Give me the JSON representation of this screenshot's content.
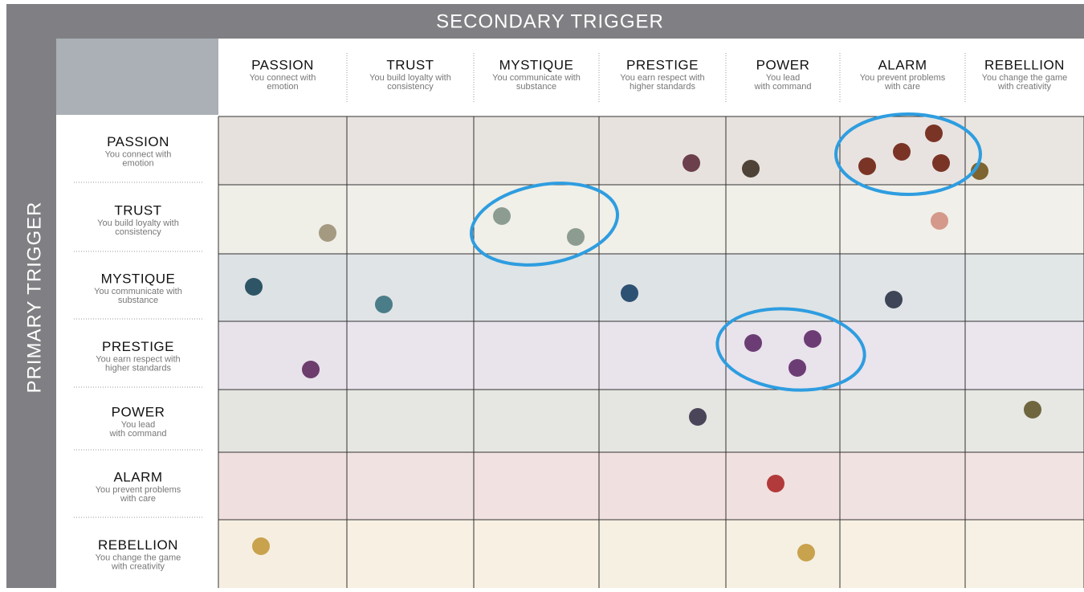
{
  "header": {
    "title": "SECONDARY TRIGGER"
  },
  "side_title": "PRIMARY TRIGGER",
  "columns": [
    {
      "name": "PASSION",
      "description": [
        "You connect with",
        "emotion"
      ]
    },
    {
      "name": "TRUST",
      "description": [
        "You build loyalty with",
        "consistency"
      ]
    },
    {
      "name": "MYSTIQUE",
      "description": [
        "You communicate with",
        "substance"
      ]
    },
    {
      "name": "PRESTIGE",
      "description": [
        "You earn respect with",
        "higher standards"
      ]
    },
    {
      "name": "POWER",
      "description": [
        "You lead",
        "with command"
      ]
    },
    {
      "name": "ALARM",
      "description": [
        "You prevent problems",
        "with care"
      ]
    },
    {
      "name": "REBELLION",
      "description": [
        "You change the game",
        "with creativity"
      ]
    }
  ],
  "rows": [
    {
      "name": "PASSION",
      "description": [
        "You connect with",
        "emotion"
      ]
    },
    {
      "name": "TRUST",
      "description": [
        "You build loyalty with",
        "consistency"
      ]
    },
    {
      "name": "MYSTIQUE",
      "description": [
        "You communicate with",
        "substance"
      ]
    },
    {
      "name": "PRESTIGE",
      "description": [
        "You earn respect with",
        "higher standards"
      ]
    },
    {
      "name": "POWER",
      "description": [
        "You lead",
        "with command"
      ]
    },
    {
      "name": "ALARM",
      "description": [
        "You prevent problems",
        "with care"
      ]
    },
    {
      "name": "REBELLION",
      "description": [
        "You change the game",
        "with creativity"
      ]
    }
  ]
}
